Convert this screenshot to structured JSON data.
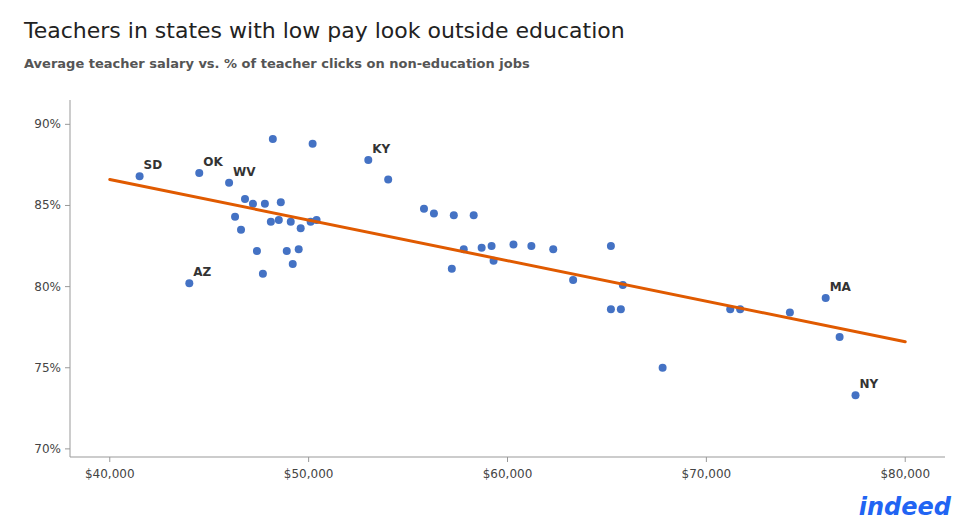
{
  "chart_data": {
    "type": "scatter",
    "title": "Teachers in states with low pay look outside education",
    "subtitle": "Average teacher salary vs. % of teacher clicks on non-education jobs",
    "xlim": [
      38000,
      82000
    ],
    "ylim": [
      0.695,
      0.915
    ],
    "xticks": [
      {
        "value": 40000,
        "label": "$40,000"
      },
      {
        "value": 50000,
        "label": "$50,000"
      },
      {
        "value": 60000,
        "label": "$60,000"
      },
      {
        "value": 70000,
        "label": "$70,000"
      },
      {
        "value": 80000,
        "label": "$80,000"
      }
    ],
    "yticks": [
      {
        "value": 0.7,
        "label": "70%"
      },
      {
        "value": 0.75,
        "label": "75%"
      },
      {
        "value": 0.8,
        "label": "80%"
      },
      {
        "value": 0.85,
        "label": "85%"
      },
      {
        "value": 0.9,
        "label": "90%"
      }
    ],
    "grid": false,
    "series": [
      {
        "type": "scatter",
        "color": "#4472c4",
        "x": [
          41500,
          44500,
          46000,
          53000,
          44000,
          76000,
          77500,
          48200,
          50200,
          46800,
          47200,
          47800,
          48600,
          46300,
          46600,
          48100,
          48500,
          49100,
          49600,
          50100,
          50400,
          47400,
          48900,
          49500,
          49200,
          47700,
          54000,
          55800,
          56300,
          57300,
          58300,
          57800,
          59200,
          59300,
          60300,
          57200,
          58700,
          61200,
          62300,
          65200,
          63300,
          65700,
          65200,
          65800,
          67800,
          71200,
          71700,
          74200,
          76700
        ],
        "values": [
          0.868,
          0.87,
          0.864,
          0.878,
          0.802,
          0.793,
          0.733,
          0.891,
          0.888,
          0.854,
          0.851,
          0.851,
          0.852,
          0.843,
          0.835,
          0.84,
          0.841,
          0.84,
          0.836,
          0.84,
          0.841,
          0.822,
          0.822,
          0.823,
          0.814,
          0.808,
          0.866,
          0.848,
          0.845,
          0.844,
          0.844,
          0.823,
          0.825,
          0.816,
          0.826,
          0.811,
          0.824,
          0.825,
          0.823,
          0.825,
          0.804,
          0.786,
          0.786,
          0.801,
          0.75,
          0.786,
          0.786,
          0.784,
          0.769
        ]
      },
      {
        "type": "line",
        "color": "#e05a00",
        "x": [
          40000,
          80000
        ],
        "values": [
          0.866,
          0.766
        ]
      }
    ],
    "annotations": [
      {
        "text": "SD",
        "x": 41500,
        "y": 0.868
      },
      {
        "text": "OK",
        "x": 44500,
        "y": 0.87
      },
      {
        "text": "WV",
        "x": 46000,
        "y": 0.864
      },
      {
        "text": "KY",
        "x": 53000,
        "y": 0.878
      },
      {
        "text": "AZ",
        "x": 44000,
        "y": 0.802
      },
      {
        "text": "MA",
        "x": 76000,
        "y": 0.793
      },
      {
        "text": "NY",
        "x": 77500,
        "y": 0.733
      },
      {
        "text": "indeed"
      }
    ]
  }
}
